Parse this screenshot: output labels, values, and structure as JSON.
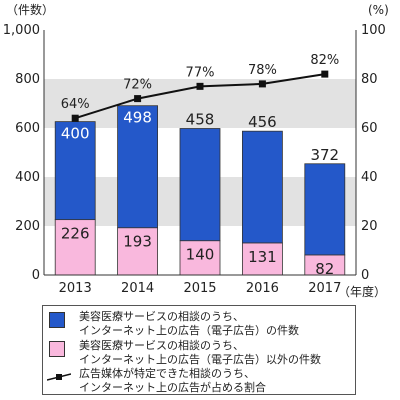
{
  "chart_data": {
    "type": "bar",
    "categories": [
      "2013",
      "2014",
      "2015",
      "2016",
      "2017"
    ],
    "y_unit": "（件数）",
    "y2_unit": "(%)",
    "x_unit": "（年度）",
    "ylim": [
      0,
      1000
    ],
    "y_ticks": [
      "0",
      "200",
      "400",
      "600",
      "800",
      "1,000"
    ],
    "y2lim": [
      0,
      100
    ],
    "y2_ticks": [
      "0",
      "20",
      "40",
      "60",
      "80",
      "100"
    ],
    "stacked": true,
    "series": [
      {
        "name": "美容医療サービスの相談のうち、\nインターネット上の広告（電子広告）以外の件数",
        "values": [
          226,
          193,
          140,
          131,
          82
        ],
        "color": "#f9b8dd",
        "labels": [
          "226",
          "193",
          "140",
          "131",
          "82"
        ]
      },
      {
        "name": "美容医療サービスの相談のうち、\nインターネット上の広告（電子広告）の件数",
        "values": [
          400,
          498,
          458,
          456,
          372
        ],
        "color": "#2458c9",
        "labels": [
          "400",
          "498",
          "458",
          "456",
          "372"
        ]
      }
    ],
    "line": {
      "name": "広告媒体が特定できた相談のうち、\nインターネット上の広告が占める割合",
      "values": [
        64,
        72,
        77,
        78,
        82
      ],
      "labels": [
        "64%",
        "72%",
        "77%",
        "78%",
        "82%"
      ]
    },
    "grid_bands": "alternating gray"
  }
}
